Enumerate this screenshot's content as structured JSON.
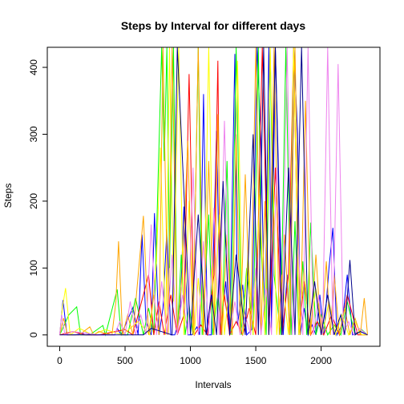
{
  "chart_data": {
    "type": "line",
    "title": "Steps by Interval for different days",
    "xlabel": "Intervals",
    "ylabel": "Steps",
    "xlim": [
      -95,
      2450
    ],
    "ylim": [
      -17,
      430
    ],
    "x_ticks": [
      0,
      500,
      1000,
      1500,
      2000
    ],
    "y_ticks": [
      0,
      100,
      200,
      300,
      400
    ],
    "grid": false,
    "legend": "none",
    "series": [
      {
        "color": "#0000ff",
        "x": [
          0,
          25,
          55,
          120,
          200,
          240,
          420,
          440,
          470,
          560,
          600,
          630,
          660,
          700,
          725,
          760,
          790,
          820,
          850,
          880,
          920,
          950,
          980,
          1010,
          1050,
          1070,
          1100,
          1130,
          1160,
          1200,
          1230,
          1270,
          1300,
          1340,
          1360,
          1400,
          1430,
          1470,
          1510,
          1540,
          1570,
          1600,
          1620,
          1650,
          1680,
          1710,
          1740,
          1760,
          1790,
          1820,
          1840,
          1870,
          1900,
          1930,
          1960,
          1990,
          2020,
          2060,
          2090,
          2120,
          2160,
          2200,
          2240,
          2300,
          2355
        ],
        "y": [
          0,
          52,
          0,
          0,
          3,
          0,
          0,
          10,
          0,
          41,
          0,
          150,
          20,
          0,
          182,
          0,
          40,
          158,
          0,
          0,
          25,
          192,
          0,
          0,
          12,
          0,
          360,
          0,
          0,
          305,
          0,
          80,
          0,
          420,
          15,
          75,
          0,
          8,
          430,
          290,
          0,
          430,
          10,
          430,
          200,
          0,
          90,
          0,
          430,
          300,
          0,
          40,
          0,
          15,
          0,
          60,
          0,
          100,
          160,
          0,
          15,
          90,
          0,
          5,
          0
        ]
      },
      {
        "color": "#00ff00",
        "x": [
          0,
          70,
          130,
          160,
          230,
          330,
          350,
          440,
          470,
          520,
          580,
          640,
          680,
          720,
          780,
          800,
          820,
          840,
          870,
          900,
          930,
          960,
          990,
          1020,
          1060,
          1090,
          1140,
          1170,
          1210,
          1240,
          1280,
          1310,
          1350,
          1390,
          1430,
          1480,
          1520,
          1540,
          1580,
          1610,
          1640,
          1690,
          1730,
          1770,
          1800,
          1830,
          1860,
          1890,
          1920,
          1960,
          2000,
          2050,
          2100,
          2150,
          2200,
          2260,
          2310,
          2355
        ],
        "y": [
          0,
          30,
          42,
          0,
          0,
          14,
          0,
          68,
          0,
          0,
          55,
          0,
          40,
          0,
          430,
          260,
          430,
          100,
          430,
          0,
          120,
          0,
          45,
          0,
          430,
          0,
          180,
          0,
          60,
          0,
          260,
          0,
          430,
          0,
          100,
          0,
          430,
          130,
          0,
          430,
          90,
          0,
          430,
          0,
          170,
          0,
          110,
          0,
          168,
          0,
          30,
          0,
          15,
          0,
          50,
          0,
          8,
          0
        ]
      },
      {
        "color": "#ff0000",
        "x": [
          0,
          100,
          200,
          300,
          500,
          560,
          600,
          680,
          720,
          760,
          800,
          850,
          900,
          950,
          990,
          1030,
          1080,
          1130,
          1180,
          1210,
          1230,
          1260,
          1300,
          1350,
          1400,
          1450,
          1500,
          1550,
          1600,
          1650,
          1700,
          1750,
          1790,
          1830,
          1870,
          1920,
          1970,
          2020,
          2080,
          2140,
          2200,
          2280,
          2355
        ],
        "y": [
          0,
          5,
          0,
          0,
          8,
          0,
          30,
          90,
          0,
          50,
          0,
          60,
          0,
          30,
          390,
          0,
          15,
          0,
          90,
          410,
          0,
          60,
          0,
          20,
          0,
          40,
          0,
          430,
          0,
          250,
          0,
          90,
          430,
          0,
          80,
          0,
          20,
          0,
          30,
          0,
          60,
          0,
          0
        ]
      },
      {
        "color": "#ffff00",
        "x": [
          0,
          20,
          45,
          80,
          150,
          250,
          350,
          480,
          600,
          690,
          740,
          770,
          810,
          840,
          870,
          910,
          950,
          990,
          1030,
          1060,
          1100,
          1140,
          1180,
          1220,
          1260,
          1290,
          1320,
          1360,
          1400,
          1440,
          1480,
          1530,
          1570,
          1610,
          1660,
          1700,
          1750,
          1790,
          1830,
          1870,
          1910,
          1960,
          2010,
          2060,
          2110,
          2160,
          2210,
          2260,
          2310,
          2355
        ],
        "y": [
          0,
          40,
          70,
          0,
          10,
          0,
          8,
          0,
          20,
          0,
          110,
          280,
          0,
          430,
          50,
          430,
          0,
          200,
          0,
          85,
          0,
          430,
          0,
          180,
          0,
          60,
          0,
          410,
          0,
          120,
          0,
          210,
          0,
          430,
          0,
          90,
          0,
          430,
          0,
          100,
          0,
          70,
          0,
          50,
          0,
          30,
          0,
          20,
          0,
          0
        ]
      },
      {
        "color": "#ffa500",
        "x": [
          0,
          30,
          60,
          150,
          230,
          260,
          300,
          400,
          430,
          450,
          480,
          520,
          560,
          640,
          680,
          720,
          760,
          790,
          830,
          860,
          900,
          940,
          980,
          1020,
          1060,
          1100,
          1140,
          1180,
          1210,
          1240,
          1280,
          1320,
          1350,
          1380,
          1420,
          1460,
          1500,
          1540,
          1570,
          1600,
          1640,
          1680,
          1720,
          1760,
          1800,
          1840,
          1880,
          1920,
          1960,
          2000,
          2040,
          2070,
          2100,
          2140,
          2180,
          2220,
          2260,
          2300,
          2330,
          2355
        ],
        "y": [
          0,
          25,
          0,
          0,
          12,
          0,
          5,
          0,
          50,
          140,
          0,
          30,
          0,
          178,
          0,
          60,
          0,
          430,
          0,
          430,
          0,
          100,
          290,
          0,
          430,
          0,
          260,
          0,
          330,
          0,
          150,
          0,
          300,
          0,
          240,
          0,
          430,
          0,
          200,
          0,
          430,
          0,
          150,
          0,
          430,
          0,
          350,
          0,
          120,
          0,
          110,
          0,
          90,
          0,
          40,
          0,
          25,
          0,
          55,
          0
        ]
      },
      {
        "color": "#ee82ee",
        "x": [
          0,
          15,
          40,
          100,
          300,
          420,
          460,
          500,
          540,
          580,
          620,
          660,
          700,
          740,
          780,
          820,
          860,
          900,
          940,
          980,
          1020,
          1060,
          1100,
          1140,
          1180,
          1220,
          1260,
          1300,
          1340,
          1380,
          1420,
          1460,
          1500,
          1540,
          1580,
          1620,
          1660,
          1700,
          1740,
          1780,
          1820,
          1860,
          1900,
          1940,
          1980,
          2010,
          2050,
          2090,
          2130,
          2170,
          2210,
          2250,
          2290,
          2355
        ],
        "y": [
          0,
          30,
          0,
          5,
          0,
          0,
          20,
          0,
          50,
          0,
          30,
          0,
          165,
          0,
          80,
          0,
          120,
          0,
          60,
          0,
          250,
          0,
          140,
          0,
          190,
          0,
          320,
          0,
          50,
          0,
          30,
          0,
          100,
          0,
          70,
          0,
          250,
          0,
          430,
          0,
          150,
          0,
          430,
          0,
          60,
          0,
          430,
          0,
          405,
          0,
          20,
          0,
          10,
          0
        ]
      },
      {
        "color": "#00008b",
        "x": [
          0,
          200,
          400,
          640,
          700,
          860,
          900,
          1000,
          1060,
          1120,
          1160,
          1200,
          1250,
          1300,
          1350,
          1420,
          1480,
          1520,
          1560,
          1600,
          1650,
          1700,
          1750,
          1800,
          1850,
          1900,
          1950,
          2000,
          2050,
          2100,
          2150,
          2180,
          2220,
          2260,
          2300,
          2355
        ],
        "y": [
          0,
          0,
          0,
          0,
          10,
          0,
          430,
          0,
          180,
          0,
          60,
          0,
          230,
          0,
          120,
          0,
          300,
          0,
          430,
          0,
          430,
          0,
          250,
          0,
          430,
          0,
          80,
          0,
          60,
          0,
          30,
          0,
          112,
          0,
          5,
          0
        ]
      }
    ]
  }
}
